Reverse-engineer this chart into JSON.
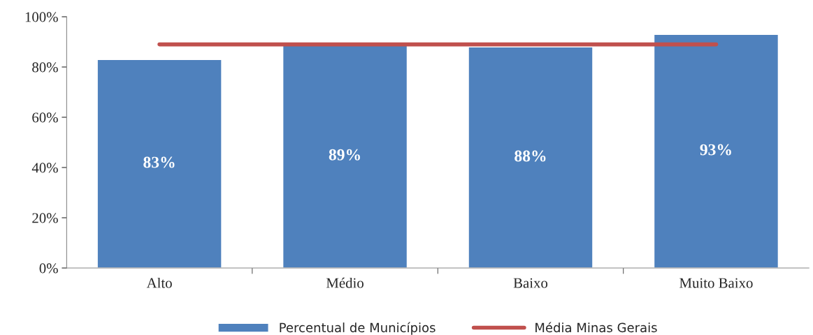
{
  "chart_data": {
    "type": "bar",
    "categories": [
      "Alto",
      "Médio",
      "Baixo",
      "Muito Baixo"
    ],
    "series": [
      {
        "name": "Percentual de Municípios",
        "color": "#4f81bd",
        "values": [
          83,
          89,
          88,
          93
        ],
        "value_labels": [
          "83%",
          "89%",
          "88%",
          "93%"
        ]
      },
      {
        "name": "Média Minas Gerais",
        "type": "line",
        "color": "#c0504d",
        "values": [
          89,
          89,
          89,
          89
        ]
      }
    ],
    "ylim": [
      0,
      100
    ],
    "yticks": [
      {
        "value": 0,
        "label": "0%"
      },
      {
        "value": 20,
        "label": "20%"
      },
      {
        "value": 40,
        "label": "40%"
      },
      {
        "value": 60,
        "label": "60%"
      },
      {
        "value": 80,
        "label": "80%"
      },
      {
        "value": 100,
        "label": "100%"
      }
    ],
    "grid": false,
    "legend": "bottom"
  }
}
